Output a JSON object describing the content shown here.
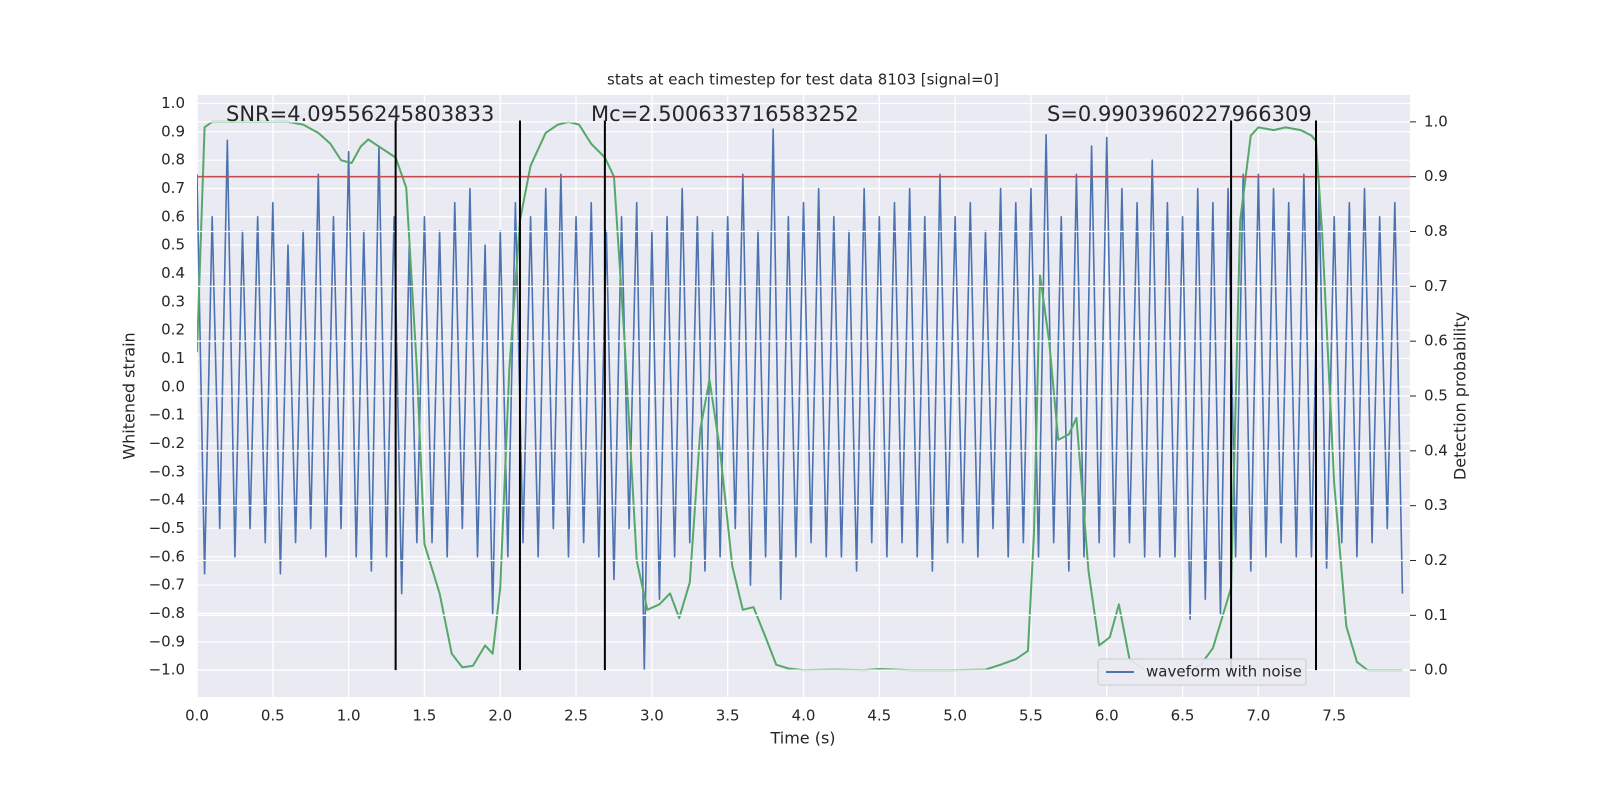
{
  "chart_data": {
    "type": "line",
    "title": "stats at each timestep for test data 8103 [signal=0]",
    "xlabel": "Time (s)",
    "ylabel": "Whitened strain",
    "y2label": "Detection probability",
    "xlim": [
      0,
      8.0
    ],
    "ylim": [
      -1.095,
      1.03
    ],
    "y2lim": [
      -0.049,
      1.049
    ],
    "grid": true,
    "legend": "lower right",
    "xticks": [
      {
        "value": 0,
        "label": "0.0"
      },
      {
        "value": 0.5,
        "label": "0.5"
      },
      {
        "value": 1,
        "label": "1.0"
      },
      {
        "value": 1.5,
        "label": "1.5"
      },
      {
        "value": 2,
        "label": "2.0"
      },
      {
        "value": 2.5,
        "label": "2.5"
      },
      {
        "value": 3,
        "label": "3.0"
      },
      {
        "value": 3.5,
        "label": "3.5"
      },
      {
        "value": 4,
        "label": "4.0"
      },
      {
        "value": 4.5,
        "label": "4.5"
      },
      {
        "value": 5,
        "label": "5.0"
      },
      {
        "value": 5.5,
        "label": "5.5"
      },
      {
        "value": 6,
        "label": "6.0"
      },
      {
        "value": 6.5,
        "label": "6.5"
      },
      {
        "value": 7,
        "label": "7.0"
      },
      {
        "value": 7.5,
        "label": "7.5"
      }
    ],
    "yticks": [
      {
        "value": 1,
        "label": "1.0"
      },
      {
        "value": 0.9,
        "label": "0.9"
      },
      {
        "value": 0.8,
        "label": "0.8"
      },
      {
        "value": 0.7,
        "label": "0.7"
      },
      {
        "value": 0.6,
        "label": "0.6"
      },
      {
        "value": 0.5,
        "label": "0.5"
      },
      {
        "value": 0.4,
        "label": "0.4"
      },
      {
        "value": 0.3,
        "label": "0.3"
      },
      {
        "value": 0.2,
        "label": "0.2"
      },
      {
        "value": 0.1,
        "label": "0.1"
      },
      {
        "value": 0,
        "label": "0.0"
      },
      {
        "value": -0.1,
        "label": "−0.1"
      },
      {
        "value": -0.2,
        "label": "−0.2"
      },
      {
        "value": -0.3,
        "label": "−0.3"
      },
      {
        "value": -0.4,
        "label": "−0.4"
      },
      {
        "value": -0.5,
        "label": "−0.5"
      },
      {
        "value": -0.6,
        "label": "−0.6"
      },
      {
        "value": -0.7,
        "label": "−0.7"
      },
      {
        "value": -0.8,
        "label": "−0.8"
      },
      {
        "value": -0.9,
        "label": "−0.9"
      },
      {
        "value": -1,
        "label": "−1.0"
      }
    ],
    "y2ticks": [
      {
        "value": 0,
        "label": "0.0"
      },
      {
        "value": 0.1,
        "label": "0.1"
      },
      {
        "value": 0.2,
        "label": "0.2"
      },
      {
        "value": 0.3,
        "label": "0.3"
      },
      {
        "value": 0.4,
        "label": "0.4"
      },
      {
        "value": 0.5,
        "label": "0.5"
      },
      {
        "value": 0.6,
        "label": "0.6"
      },
      {
        "value": 0.7,
        "label": "0.7"
      },
      {
        "value": 0.8,
        "label": "0.8"
      },
      {
        "value": 0.9,
        "label": "0.9"
      },
      {
        "value": 1,
        "label": "1.0"
      }
    ],
    "annotations": [
      "SNR=4.09556245803833",
      "Mc=2.500633716583252",
      "S=0.9903960227966309"
    ],
    "series": [
      {
        "name": "waveform with noise",
        "color": "#4c72b0",
        "x": [
          0,
          0.05,
          0.1,
          0.15,
          0.2,
          0.25,
          0.3,
          0.35,
          0.4,
          0.45,
          0.5,
          0.55,
          0.6,
          0.65,
          0.7,
          0.75,
          0.8,
          0.85,
          0.9,
          0.95,
          1,
          1.05,
          1.1,
          1.15,
          1.2,
          1.25,
          1.3,
          1.35,
          1.4,
          1.45,
          1.5,
          1.55,
          1.6,
          1.65,
          1.7,
          1.75,
          1.8,
          1.85,
          1.9,
          1.95,
          2,
          2.05,
          2.1,
          2.15,
          2.2,
          2.25,
          2.3,
          2.35,
          2.4,
          2.45,
          2.5,
          2.55,
          2.6,
          2.65,
          2.7,
          2.75,
          2.8,
          2.85,
          2.9,
          2.95,
          3,
          3.05,
          3.1,
          3.15,
          3.2,
          3.25,
          3.3,
          3.35,
          3.4,
          3.45,
          3.5,
          3.55,
          3.6,
          3.65,
          3.7,
          3.75,
          3.8,
          3.85,
          3.9,
          3.95,
          4,
          4.05,
          4.1,
          4.15,
          4.2,
          4.25,
          4.3,
          4.35,
          4.4,
          4.45,
          4.5,
          4.55,
          4.6,
          4.65,
          4.7,
          4.75,
          4.8,
          4.85,
          4.9,
          4.95,
          5,
          5.05,
          5.1,
          5.15,
          5.2,
          5.25,
          5.3,
          5.35,
          5.4,
          5.45,
          5.5,
          5.55,
          5.6,
          5.65,
          5.7,
          5.75,
          5.8,
          5.85,
          5.9,
          5.95,
          6,
          6.05,
          6.1,
          6.15,
          6.2,
          6.25,
          6.3,
          6.35,
          6.4,
          6.45,
          6.5,
          6.55,
          6.6,
          6.65,
          6.7,
          6.75,
          6.8,
          6.85,
          6.9,
          6.95,
          7,
          7.05,
          7.1,
          7.15,
          7.2,
          7.25,
          7.3,
          7.35,
          7.4,
          7.45,
          7.5,
          7.55,
          7.6,
          7.65,
          7.7,
          7.75,
          7.8,
          7.85,
          7.9,
          7.95
        ],
        "values": [
          0.75,
          -0.66,
          0.6,
          -0.5,
          0.87,
          -0.6,
          0.55,
          -0.5,
          0.6,
          -0.55,
          0.65,
          -0.66,
          0.5,
          -0.55,
          0.55,
          -0.5,
          0.75,
          -0.6,
          0.6,
          -0.5,
          0.83,
          -0.6,
          0.55,
          -0.65,
          0.85,
          -0.6,
          0.6,
          -0.73,
          0.5,
          -0.55,
          0.6,
          -0.55,
          0.55,
          -0.6,
          0.65,
          -0.5,
          0.7,
          -0.6,
          0.5,
          -0.8,
          0.55,
          -0.6,
          0.65,
          -0.55,
          0.6,
          -0.6,
          0.7,
          -0.5,
          0.75,
          -0.6,
          0.6,
          -0.55,
          0.65,
          -0.6,
          0.55,
          -0.68,
          0.6,
          -0.5,
          0.65,
          -1.0,
          0.55,
          -0.75,
          0.6,
          -0.6,
          0.7,
          -0.55,
          0.6,
          -0.65,
          0.55,
          -0.6,
          0.6,
          -0.5,
          0.75,
          -0.7,
          0.55,
          -0.6,
          0.91,
          -0.75,
          0.6,
          -0.6,
          0.65,
          -0.55,
          0.7,
          -0.6,
          0.6,
          -0.6,
          0.55,
          -0.65,
          0.7,
          -0.55,
          0.6,
          -0.6,
          0.65,
          -0.55,
          0.7,
          -0.6,
          0.6,
          -0.65,
          0.75,
          -0.55,
          0.6,
          -0.55,
          0.65,
          -0.6,
          0.55,
          -0.5,
          0.7,
          -0.6,
          0.65,
          -0.55,
          0.7,
          -0.6,
          0.89,
          -0.55,
          0.6,
          -0.65,
          0.75,
          -0.6,
          0.85,
          -0.55,
          0.88,
          -0.6,
          0.7,
          -0.55,
          0.65,
          -0.6,
          0.8,
          -0.6,
          0.65,
          -0.6,
          0.6,
          -0.82,
          0.7,
          -0.75,
          0.65,
          -0.8,
          0.7,
          -0.6,
          0.75,
          -0.65,
          0.75,
          -0.6,
          0.7,
          -0.55,
          0.65,
          -0.6,
          0.75,
          -0.6,
          0.7,
          -0.64,
          0.6,
          -0.55,
          0.65,
          -0.6,
          0.7,
          -0.55,
          0.6,
          -0.5,
          0.65,
          -0.73
        ]
      },
      {
        "color": "#55a868",
        "axis": "y2",
        "x": [
          0,
          0.05,
          0.1,
          0.2,
          0.4,
          0.6,
          0.7,
          0.8,
          0.88,
          0.95,
          1.02,
          1.08,
          1.13,
          1.2,
          1.31,
          1.38,
          1.45,
          1.5,
          1.6,
          1.68,
          1.75,
          1.82,
          1.9,
          1.95,
          2,
          2.06,
          2.13,
          2.2,
          2.3,
          2.38,
          2.45,
          2.52,
          2.6,
          2.69,
          2.75,
          2.82,
          2.9,
          2.97,
          3.05,
          3.12,
          3.18,
          3.25,
          3.32,
          3.38,
          3.45,
          3.53,
          3.6,
          3.67,
          3.75,
          3.82,
          3.9,
          4,
          4.2,
          4.4,
          4.5,
          4.7,
          5,
          5.2,
          5.3,
          5.4,
          5.48,
          5.52,
          5.56,
          5.62,
          5.68,
          5.75,
          5.8,
          5.88,
          5.95,
          6.02,
          6.08,
          6.15,
          6.25,
          6.4,
          6.55,
          6.62,
          6.7,
          6.82,
          6.88,
          6.95,
          7,
          7.1,
          7.18,
          7.28,
          7.35,
          7.38,
          7.42,
          7.5,
          7.58,
          7.65,
          7.72,
          7.95
        ],
        "values": [
          0.58,
          0.99,
          1.0,
          1.0,
          1.0,
          1.0,
          0.995,
          0.98,
          0.96,
          0.93,
          0.925,
          0.955,
          0.968,
          0.955,
          0.935,
          0.88,
          0.55,
          0.23,
          0.14,
          0.03,
          0.005,
          0.008,
          0.045,
          0.03,
          0.15,
          0.55,
          0.82,
          0.92,
          0.98,
          0.995,
          1.0,
          0.995,
          0.96,
          0.935,
          0.9,
          0.6,
          0.2,
          0.11,
          0.12,
          0.14,
          0.095,
          0.16,
          0.44,
          0.53,
          0.4,
          0.19,
          0.11,
          0.115,
          0.06,
          0.01,
          0.003,
          0.0,
          0.001,
          0.0,
          0.002,
          0.0,
          0.0,
          0.001,
          0.01,
          0.02,
          0.035,
          0.25,
          0.72,
          0.6,
          0.42,
          0.43,
          0.46,
          0.18,
          0.045,
          0.06,
          0.12,
          0.02,
          0.0,
          0.0,
          0.0,
          0.01,
          0.04,
          0.15,
          0.82,
          0.975,
          0.99,
          0.985,
          0.99,
          0.985,
          0.975,
          0.965,
          0.8,
          0.34,
          0.08,
          0.015,
          0.0,
          0.0
        ]
      }
    ],
    "hlines": [
      {
        "value": 0.9,
        "axis": "y2",
        "color": "#c44e52"
      }
    ],
    "vlines": {
      "x": [
        1.31,
        2.13,
        2.69,
        6.82,
        7.38
      ],
      "ymin": -1.0,
      "ymax": 0.94,
      "color": "#000000"
    }
  }
}
